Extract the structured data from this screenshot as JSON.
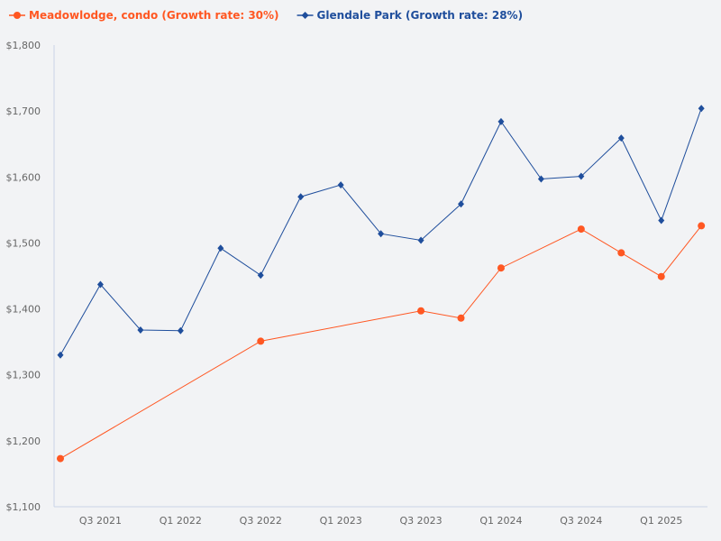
{
  "chart_data": {
    "type": "line",
    "title": "",
    "xlabel": "",
    "ylabel": "",
    "ylim": [
      1100,
      1800
    ],
    "y_ticks": [
      "$1,100",
      "$1,200",
      "$1,300",
      "$1,400",
      "$1,500",
      "$1,600",
      "$1,700",
      "$1,800"
    ],
    "x": [
      "Q2 2021",
      "Q3 2021",
      "Q4 2021",
      "Q1 2022",
      "Q2 2022",
      "Q3 2022",
      "Q4 2022",
      "Q1 2023",
      "Q2 2023",
      "Q3 2023",
      "Q4 2023",
      "Q1 2024",
      "Q2 2024",
      "Q3 2024",
      "Q4 2024",
      "Q1 2025",
      "Q2 2025"
    ],
    "x_tick_labels": [
      "Q3 2021",
      "Q1 2022",
      "Q3 2022",
      "Q1 2023",
      "Q3 2023",
      "Q1 2024",
      "Q3 2024",
      "Q1 2025"
    ],
    "grid": false,
    "legend_position": "top-left",
    "series": [
      {
        "name": "Meadowlodge, condo (Growth rate: 30%)",
        "color": "#ff5722",
        "marker": "circle",
        "values": [
          1173,
          null,
          null,
          null,
          null,
          1351,
          null,
          null,
          null,
          1397,
          1386,
          1462,
          null,
          1521,
          1485,
          1449,
          1526
        ]
      },
      {
        "name": "Glendale Park (Growth rate: 28%)",
        "color": "#1f4e9c",
        "marker": "diamond",
        "values": [
          1330,
          1437,
          1368,
          1367,
          1492,
          1451,
          1570,
          1588,
          1514,
          1504,
          1559,
          1684,
          1597,
          1601,
          1659,
          1534,
          1704
        ]
      }
    ]
  }
}
